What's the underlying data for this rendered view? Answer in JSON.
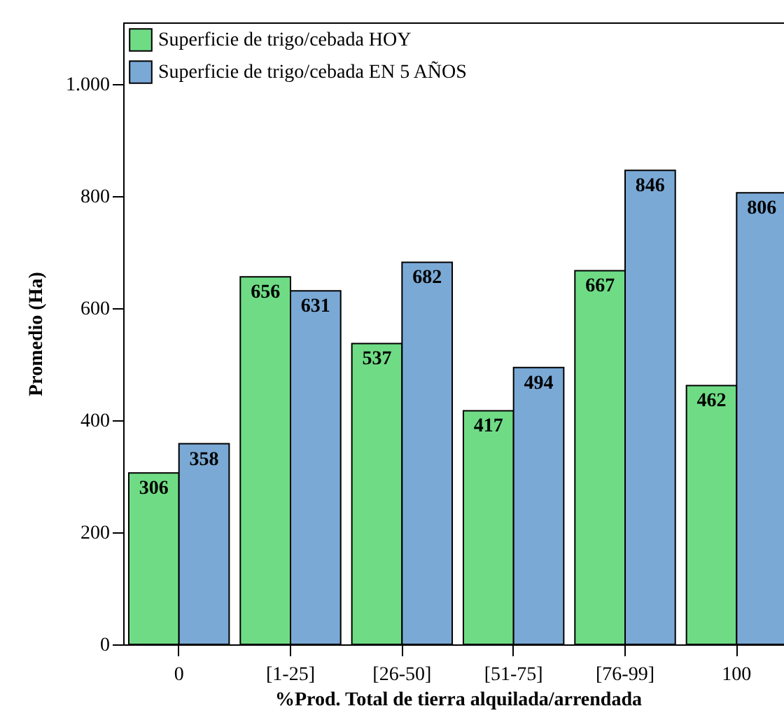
{
  "chart_data": {
    "type": "bar",
    "xlabel": "%Prod. Total de tierra alquilada/arrendada",
    "ylabel": "Promedio (Ha)",
    "categories": [
      "0",
      "[1-25]",
      "[26-50]",
      "[51-75]",
      "[76-99]",
      "100"
    ],
    "series": [
      {
        "name": "Superficie de trigo/cebada HOY",
        "color": "#6fdc85",
        "values": [
          306,
          656,
          537,
          417,
          667,
          462
        ]
      },
      {
        "name": "Superficie de trigo/cebada EN 5 AÑOS",
        "color": "#7aa9d6",
        "values": [
          358,
          631,
          682,
          494,
          846,
          806
        ]
      }
    ],
    "ylim": [
      0,
      1110
    ],
    "yticks": [
      0,
      200,
      400,
      600,
      800,
      {
        "value": 1000,
        "label": "1.000"
      }
    ],
    "legend": "top left",
    "data_labels": true
  }
}
